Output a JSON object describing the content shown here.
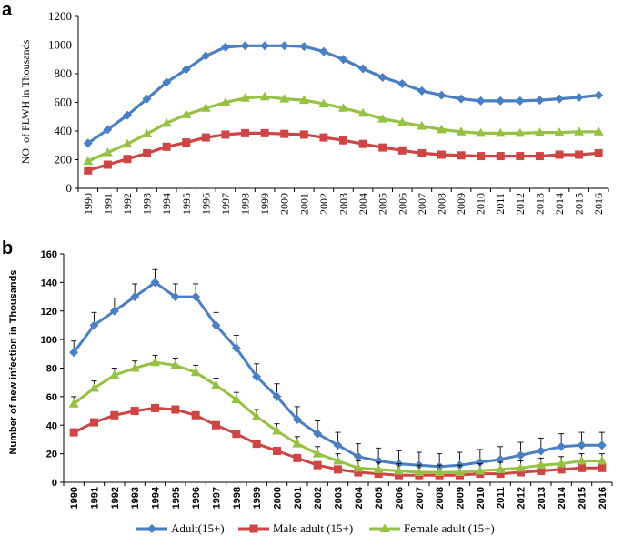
{
  "colors": {
    "adult": "#4a7fc1",
    "male": "#cd4544",
    "female": "#97c145",
    "error_bar": "#000000"
  },
  "legend": [
    {
      "label": "Adult(15+)",
      "marker": "diamond",
      "color": "#4a7fc1"
    },
    {
      "label": "Male adult (15+)",
      "marker": "square",
      "color": "#cd4544"
    },
    {
      "label": "Female adult (15+)",
      "marker": "triangle",
      "color": "#97c145"
    }
  ],
  "chart_data": [
    {
      "panel": "a",
      "type": "line",
      "title": "",
      "xlabel": "",
      "ylabel": "NO. of PLWH  in Thousands",
      "ylim": [
        0,
        1200
      ],
      "yticks": [
        0,
        200,
        400,
        600,
        800,
        1000,
        1200
      ],
      "categories": [
        "1990",
        "1991",
        "1992",
        "1993",
        "1994",
        "1995",
        "1996",
        "1997",
        "1998",
        "1999",
        "2000",
        "2001",
        "2002",
        "2003",
        "2004",
        "2005",
        "2006",
        "2007",
        "2008",
        "2009",
        "2010",
        "2011",
        "2012",
        "2013",
        "2014",
        "2015",
        "2016"
      ],
      "series": [
        {
          "name": "Adult(15+)",
          "values": [
            315,
            410,
            510,
            625,
            740,
            830,
            925,
            985,
            995,
            995,
            995,
            990,
            955,
            900,
            835,
            775,
            730,
            680,
            650,
            625,
            610,
            610,
            610,
            615,
            625,
            635,
            650
          ]
        },
        {
          "name": "Male adult (15+)",
          "values": [
            125,
            165,
            205,
            245,
            290,
            320,
            355,
            375,
            385,
            385,
            380,
            375,
            355,
            335,
            310,
            285,
            265,
            245,
            235,
            230,
            225,
            225,
            225,
            225,
            235,
            235,
            245
          ]
        },
        {
          "name": "Female adult (15+)",
          "values": [
            190,
            250,
            310,
            380,
            455,
            515,
            560,
            600,
            630,
            640,
            625,
            615,
            590,
            560,
            525,
            485,
            460,
            435,
            410,
            395,
            385,
            385,
            385,
            390,
            390,
            395,
            395
          ]
        }
      ]
    },
    {
      "panel": "b",
      "type": "line",
      "title": "",
      "xlabel": "",
      "ylabel": "Number of new infection in Thousands",
      "ylim": [
        0,
        160
      ],
      "yticks": [
        0,
        20,
        40,
        60,
        80,
        100,
        120,
        140,
        160
      ],
      "categories": [
        "1990",
        "1991",
        "1992",
        "1993",
        "1994",
        "1995",
        "1996",
        "1997",
        "1998",
        "1999",
        "2000",
        "2001",
        "2002",
        "2003",
        "2004",
        "2005",
        "2006",
        "2007",
        "2008",
        "2009",
        "2010",
        "2011",
        "2012",
        "2013",
        "2014",
        "2015",
        "2016"
      ],
      "series": [
        {
          "name": "Adult(15+)",
          "values": [
            91,
            110,
            120,
            130,
            140,
            130,
            130,
            110,
            94,
            74,
            60,
            44,
            34,
            26,
            18,
            15,
            13,
            12,
            11,
            12,
            14,
            16,
            19,
            22,
            25,
            26,
            26
          ],
          "error": [
            8,
            9,
            9,
            9,
            9,
            9,
            9,
            9,
            9,
            9,
            9,
            9,
            9,
            9,
            9,
            9,
            9,
            9,
            9,
            9,
            9,
            9,
            9,
            9,
            9,
            9,
            9
          ]
        },
        {
          "name": "Male adult (15+)",
          "values": [
            35,
            42,
            47,
            50,
            52,
            51,
            47,
            40,
            34,
            27,
            22,
            17,
            12,
            9,
            7,
            6,
            5,
            5,
            5,
            5,
            6,
            6,
            7,
            8,
            9,
            10,
            10
          ],
          "error": [
            2,
            2,
            2,
            2,
            2,
            2,
            2,
            2,
            2,
            2,
            2,
            2,
            2,
            2,
            2,
            2,
            2,
            2,
            2,
            2,
            2,
            2,
            2,
            2,
            2,
            2,
            2
          ]
        },
        {
          "name": "Female adult (15+)",
          "values": [
            55,
            66,
            75,
            80,
            84,
            82,
            77,
            68,
            58,
            46,
            36,
            27,
            20,
            15,
            10,
            9,
            8,
            7,
            7,
            7,
            8,
            9,
            10,
            12,
            13,
            15,
            15
          ],
          "error": [
            5,
            5,
            5,
            5,
            5,
            5,
            5,
            5,
            5,
            5,
            5,
            5,
            5,
            5,
            5,
            5,
            5,
            5,
            5,
            5,
            5,
            5,
            5,
            5,
            5,
            5,
            5
          ]
        }
      ]
    }
  ]
}
